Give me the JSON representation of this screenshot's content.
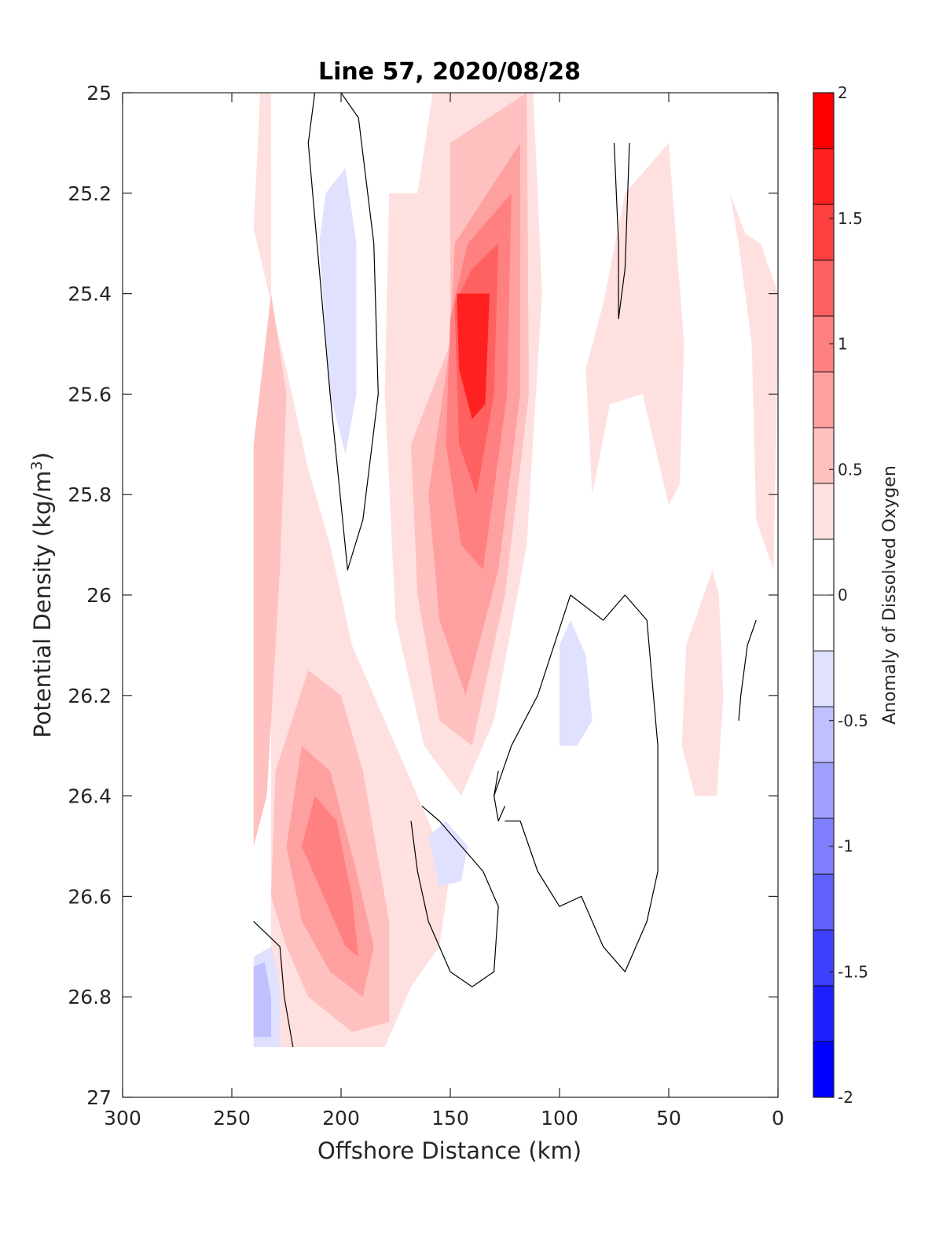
{
  "chart_data": {
    "type": "heatmap",
    "title": "Line 57, 2020/08/28",
    "xlabel": "Offshore Distance (km)",
    "ylabel_main": "Potential Density (kg/m",
    "ylabel_sup": "3",
    "ylabel_close": ")",
    "colorbar_label": "Anomaly of Dissolved Oxygen",
    "xlim": [
      300,
      0
    ],
    "ylim": [
      27,
      25
    ],
    "x_reversed": true,
    "y_reversed": true,
    "xticks": [
      "300",
      "250",
      "200",
      "150",
      "100",
      "50",
      "0"
    ],
    "yticks": [
      "25",
      "25.2",
      "25.4",
      "25.6",
      "25.8",
      "26",
      "26.2",
      "26.4",
      "26.6",
      "26.8",
      "27"
    ],
    "colorbar": {
      "range": [
        -2,
        2
      ],
      "step": 0.25,
      "ticks": [
        "-2",
        "-1.5",
        "-1",
        "-0.5",
        "0",
        "0.5",
        "1",
        "1.5",
        "2"
      ],
      "colors": [
        "#0000ff",
        "#2020ff",
        "#4040ff",
        "#6060ff",
        "#8080ff",
        "#a0a0ff",
        "#c0c0ff",
        "#e0e0ff",
        "#ffffff",
        "#ffffff",
        "#ffe0e0",
        "#ffc0c0",
        "#ffa0a0",
        "#ff8080",
        "#ff6060",
        "#ff4040",
        "#ff2020",
        "#ff0000"
      ]
    },
    "fields": [
      {
        "level": 0.5,
        "color": "#ffe0e0",
        "points": [
          [
            240,
            25.27
          ],
          [
            237,
            25.0
          ],
          [
            232,
            25.0
          ],
          [
            232,
            26.9
          ],
          [
            180,
            26.9
          ],
          [
            168,
            26.78
          ],
          [
            155,
            26.7
          ],
          [
            150,
            26.55
          ],
          [
            170,
            26.35
          ],
          [
            195,
            26.1
          ],
          [
            205,
            25.9
          ],
          [
            215,
            25.75
          ],
          [
            225,
            25.55
          ]
        ]
      },
      {
        "level": 0.5,
        "color": "#ffe0e0",
        "points": [
          [
            80,
            25.42
          ],
          [
            70,
            25.2
          ],
          [
            50,
            25.1
          ],
          [
            43,
            25.5
          ],
          [
            45,
            25.78
          ],
          [
            50,
            25.82
          ],
          [
            62,
            25.6
          ],
          [
            77,
            25.62
          ],
          [
            85,
            25.8
          ],
          [
            88,
            25.55
          ]
        ]
      },
      {
        "level": 0.5,
        "color": "#ffe0e0",
        "points": [
          [
            22,
            25.2
          ],
          [
            18,
            25.3
          ],
          [
            12,
            25.5
          ],
          [
            10,
            25.85
          ],
          [
            2,
            25.95
          ],
          [
            0,
            25.5
          ],
          [
            0,
            25.4
          ],
          [
            8,
            25.3
          ],
          [
            15,
            25.28
          ]
        ]
      },
      {
        "level": 0.5,
        "color": "#ffe0e0",
        "points": [
          [
            30,
            25.95
          ],
          [
            42,
            26.1
          ],
          [
            44,
            26.3
          ],
          [
            38,
            26.4
          ],
          [
            28,
            26.4
          ],
          [
            25,
            26.2
          ],
          [
            27,
            26.0
          ]
        ]
      },
      {
        "level": 0.5,
        "color": "#ffe0e0",
        "points": [
          [
            165,
            25.2
          ],
          [
            158,
            25.0
          ],
          [
            112,
            25.0
          ],
          [
            108,
            25.4
          ],
          [
            115,
            25.9
          ],
          [
            130,
            26.25
          ],
          [
            145,
            26.4
          ],
          [
            162,
            26.3
          ],
          [
            175,
            26.05
          ],
          [
            180,
            25.6
          ],
          [
            178,
            25.2
          ]
        ]
      },
      {
        "level": 0.75,
        "color": "#ffc0c0",
        "points": [
          [
            240,
            25.7
          ],
          [
            232,
            25.4
          ],
          [
            225,
            25.6
          ],
          [
            228,
            25.95
          ],
          [
            234,
            26.4
          ],
          [
            240,
            26.5
          ]
        ]
      },
      {
        "level": 0.75,
        "color": "#ffc0c0",
        "points": [
          [
            150,
            25.5
          ],
          [
            150,
            25.1
          ],
          [
            115,
            25.0
          ],
          [
            114,
            25.6
          ],
          [
            125,
            26.0
          ],
          [
            140,
            26.3
          ],
          [
            155,
            26.25
          ],
          [
            165,
            26.0
          ],
          [
            168,
            25.7
          ]
        ]
      },
      {
        "level": 0.75,
        "color": "#ffc0c0",
        "points": [
          [
            232,
            26.6
          ],
          [
            230,
            26.35
          ],
          [
            215,
            26.15
          ],
          [
            200,
            26.2
          ],
          [
            190,
            26.35
          ],
          [
            178,
            26.65
          ],
          [
            178,
            26.85
          ],
          [
            195,
            26.87
          ],
          [
            215,
            26.8
          ],
          [
            225,
            26.7
          ]
        ]
      },
      {
        "level": 1.0,
        "color": "#ffa0a0",
        "points": [
          [
            150,
            25.5
          ],
          [
            148,
            25.3
          ],
          [
            118,
            25.1
          ],
          [
            118,
            25.6
          ],
          [
            128,
            25.95
          ],
          [
            143,
            26.2
          ],
          [
            155,
            26.05
          ],
          [
            160,
            25.8
          ]
        ]
      },
      {
        "level": 1.0,
        "color": "#ffa0a0",
        "points": [
          [
            225,
            26.5
          ],
          [
            218,
            26.3
          ],
          [
            205,
            26.35
          ],
          [
            193,
            26.55
          ],
          [
            185,
            26.7
          ],
          [
            190,
            26.8
          ],
          [
            205,
            26.75
          ],
          [
            218,
            26.65
          ]
        ]
      },
      {
        "level": 1.25,
        "color": "#ff8080",
        "points": [
          [
            150,
            25.45
          ],
          [
            142,
            25.3
          ],
          [
            122,
            25.2
          ],
          [
            124,
            25.6
          ],
          [
            135,
            25.95
          ],
          [
            145,
            25.9
          ],
          [
            152,
            25.7
          ]
        ]
      },
      {
        "level": 1.25,
        "color": "#ff8080",
        "points": [
          [
            218,
            26.5
          ],
          [
            212,
            26.4
          ],
          [
            202,
            26.45
          ],
          [
            195,
            26.6
          ],
          [
            192,
            26.72
          ],
          [
            198,
            26.7
          ],
          [
            208,
            26.6
          ]
        ]
      },
      {
        "level": 1.5,
        "color": "#ff6060",
        "points": [
          [
            148,
            25.42
          ],
          [
            140,
            25.35
          ],
          [
            128,
            25.3
          ],
          [
            130,
            25.6
          ],
          [
            138,
            25.8
          ],
          [
            146,
            25.7
          ]
        ]
      },
      {
        "level": 1.75,
        "color": "#ff2020",
        "points": [
          [
            147,
            25.4
          ],
          [
            140,
            25.4
          ],
          [
            132,
            25.4
          ],
          [
            134,
            25.62
          ],
          [
            140,
            25.65
          ],
          [
            146,
            25.55
          ]
        ]
      },
      {
        "level": -0.25,
        "color": "#e0e0ff",
        "points": [
          [
            210,
            25.3
          ],
          [
            207,
            25.2
          ],
          [
            198,
            25.15
          ],
          [
            193,
            25.3
          ],
          [
            193,
            25.6
          ],
          [
            198,
            25.72
          ],
          [
            205,
            25.6
          ]
        ]
      },
      {
        "level": -0.25,
        "color": "#e0e0ff",
        "points": [
          [
            100,
            26.1
          ],
          [
            95,
            26.05
          ],
          [
            88,
            26.12
          ],
          [
            85,
            26.25
          ],
          [
            92,
            26.3
          ],
          [
            100,
            26.3
          ]
        ]
      },
      {
        "level": -0.25,
        "color": "#e0e0ff",
        "points": [
          [
            160,
            26.48
          ],
          [
            152,
            26.45
          ],
          [
            142,
            26.5
          ],
          [
            145,
            26.57
          ],
          [
            155,
            26.58
          ]
        ]
      },
      {
        "level": -0.25,
        "color": "#e0e0ff",
        "points": [
          [
            240,
            26.72
          ],
          [
            232,
            26.7
          ],
          [
            228,
            26.78
          ],
          [
            228,
            26.9
          ],
          [
            240,
            26.9
          ]
        ]
      },
      {
        "level": -0.5,
        "color": "#c0c0ff",
        "points": [
          [
            240,
            26.74
          ],
          [
            235,
            26.73
          ],
          [
            232,
            26.8
          ],
          [
            232,
            26.88
          ],
          [
            240,
            26.88
          ]
        ]
      }
    ],
    "zero_contours": [
      [
        [
          200,
          25.0
        ],
        [
          192,
          25.05
        ],
        [
          185,
          25.3
        ],
        [
          183,
          25.6
        ],
        [
          190,
          25.85
        ],
        [
          197,
          25.95
        ],
        [
          205,
          25.6
        ],
        [
          210,
          25.35
        ],
        [
          215,
          25.1
        ],
        [
          212,
          25.0
        ]
      ],
      [
        [
          75,
          25.1
        ],
        [
          73,
          25.3
        ],
        [
          73,
          25.45
        ],
        [
          70,
          25.35
        ],
        [
          68,
          25.1
        ]
      ],
      [
        [
          130,
          26.4
        ],
        [
          122,
          26.3
        ],
        [
          110,
          26.2
        ],
        [
          95,
          26.0
        ],
        [
          80,
          26.05
        ],
        [
          70,
          26.0
        ],
        [
          60,
          26.05
        ],
        [
          55,
          26.3
        ],
        [
          55,
          26.55
        ],
        [
          60,
          26.65
        ],
        [
          70,
          26.75
        ],
        [
          80,
          26.7
        ],
        [
          90,
          26.6
        ],
        [
          100,
          26.62
        ],
        [
          110,
          26.55
        ],
        [
          118,
          26.45
        ],
        [
          125,
          26.45
        ]
      ],
      [
        [
          168,
          26.45
        ],
        [
          165,
          26.55
        ],
        [
          160,
          26.65
        ],
        [
          150,
          26.75
        ],
        [
          140,
          26.78
        ],
        [
          130,
          26.75
        ],
        [
          128,
          26.62
        ],
        [
          135,
          26.55
        ],
        [
          145,
          26.5
        ],
        [
          155,
          26.45
        ],
        [
          163,
          26.42
        ]
      ],
      [
        [
          240,
          26.65
        ],
        [
          228,
          26.7
        ],
        [
          226,
          26.8
        ],
        [
          222,
          26.9
        ]
      ],
      [
        [
          10,
          26.05
        ],
        [
          14,
          26.1
        ],
        [
          17,
          26.2
        ],
        [
          18,
          26.25
        ]
      ],
      [
        [
          125,
          26.42
        ],
        [
          128,
          26.45
        ],
        [
          130,
          26.4
        ],
        [
          128,
          26.35
        ]
      ]
    ]
  }
}
